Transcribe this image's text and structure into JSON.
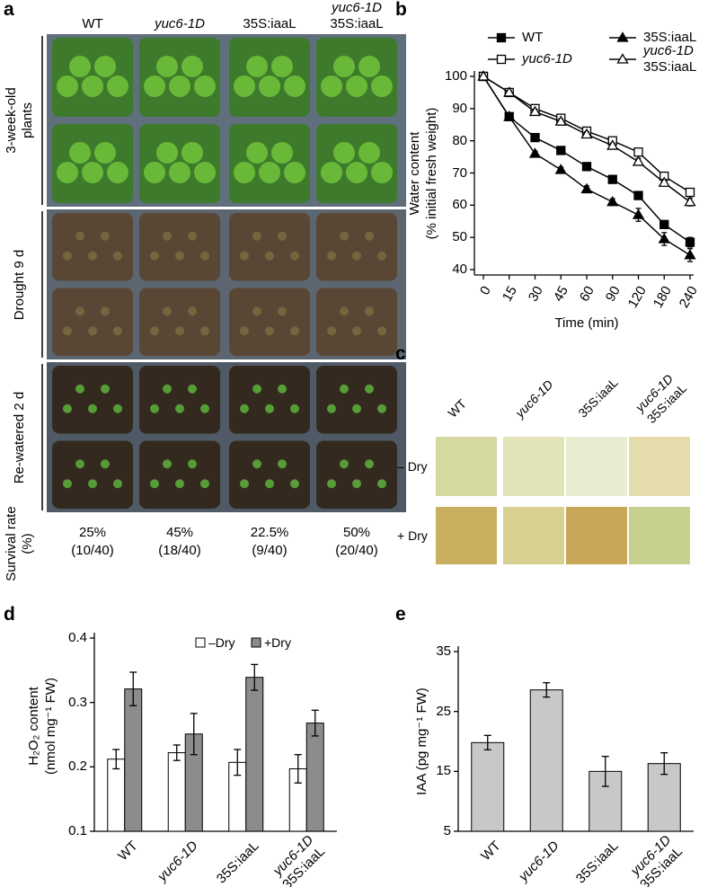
{
  "panel_labels": [
    "a",
    "b",
    "c",
    "d",
    "e"
  ],
  "photo_panel_a": {
    "columns": [
      "WT",
      "yuc6-1D",
      "35S:iaaL",
      "yuc6-1D 35S:iaaL"
    ],
    "rows": [
      "3-week-old plants",
      "Drought 9 d",
      "Re-watered 2 d"
    ],
    "survival_label": "Survival rate (%)",
    "survival": [
      [
        "25%",
        "(10/40)"
      ],
      [
        "45%",
        "(18/40)"
      ],
      [
        "22.5%",
        "(9/40)"
      ],
      [
        "50%",
        "(20/40)"
      ]
    ]
  },
  "photo_panel_c": {
    "columns": [
      "WT",
      "yuc6-1D",
      "35S:iaaL",
      "yuc6-1D 35S:iaaL"
    ],
    "rows": [
      "– Dry",
      "+ Dry"
    ]
  },
  "chart_data": [
    {
      "type": "line",
      "xlabel": "Time (min)",
      "ylabel": [
        "Water content",
        "(% initial fresh weight)"
      ],
      "categories": [
        "0",
        "15",
        "30",
        "45",
        "60",
        "90",
        "120",
        "180",
        "240"
      ],
      "ylim": [
        40,
        100
      ],
      "yticks": [
        40,
        50,
        60,
        70,
        80,
        90,
        100
      ],
      "series": [
        {
          "name": "WT",
          "color": "#000000",
          "marker": "filled-square",
          "values": [
            100,
            87.5,
            81,
            77,
            72,
            68,
            63,
            54,
            48.5
          ],
          "errors": [
            0,
            0.8,
            0.8,
            0.8,
            0.8,
            1,
            1,
            1.2,
            1.5
          ]
        },
        {
          "name": "yuc6-1D",
          "color": "#000000",
          "marker": "open-square",
          "values": [
            100,
            95,
            90,
            87,
            83,
            80,
            76.5,
            69,
            64
          ],
          "errors": [
            0,
            0.6,
            0.8,
            0.8,
            0.8,
            0.8,
            1,
            1,
            1.2
          ]
        },
        {
          "name": "35S:iaaL",
          "color": "#000000",
          "marker": "filled-triangle",
          "values": [
            100,
            87.5,
            76,
            71,
            65,
            61,
            57,
            49.5,
            44.5
          ],
          "errors": [
            0,
            0.8,
            0.8,
            0.8,
            1,
            1,
            2,
            2,
            2
          ]
        },
        {
          "name": "yuc6-1D 35S:iaaL",
          "color": "#000000",
          "marker": "open-triangle",
          "values": [
            100,
            95,
            89,
            86,
            82,
            78.5,
            73.5,
            67,
            61
          ],
          "errors": [
            0,
            0.6,
            0.8,
            0.8,
            0.8,
            0.8,
            1,
            1,
            1.2
          ]
        }
      ]
    },
    {
      "type": "grouped-bar",
      "ylabel": [
        "H₂O₂ content",
        "(nmol mg⁻¹ FW)"
      ],
      "categories": [
        "WT",
        "yuc6-1D",
        "35S:iaaL",
        "yuc6-1D 35S:iaaL"
      ],
      "ylim": [
        0.1,
        0.4
      ],
      "yticks": [
        0.1,
        0.2,
        0.3,
        0.4
      ],
      "series": [
        {
          "name": "–Dry",
          "color": "#ffffff",
          "values": [
            0.212,
            0.222,
            0.207,
            0.197
          ],
          "errors": [
            0.015,
            0.012,
            0.02,
            0.022
          ]
        },
        {
          "name": "+Dry",
          "color": "#8c8c8c",
          "values": [
            0.321,
            0.251,
            0.339,
            0.268
          ],
          "errors": [
            0.026,
            0.032,
            0.02,
            0.02
          ]
        }
      ]
    },
    {
      "type": "bar",
      "ylabel": [
        "IAA (pg mg⁻¹ FW)"
      ],
      "categories": [
        "WT",
        "yuc6-1D",
        "35S:iaaL",
        "yuc6-1D 35S:iaaL"
      ],
      "ylim": [
        5,
        35
      ],
      "yticks": [
        5,
        15,
        25,
        35
      ],
      "color": "#c8c8c8",
      "values": [
        19.8,
        28.6,
        15.0,
        16.3
      ],
      "errors": [
        1.2,
        1.2,
        2.5,
        1.8
      ]
    }
  ]
}
